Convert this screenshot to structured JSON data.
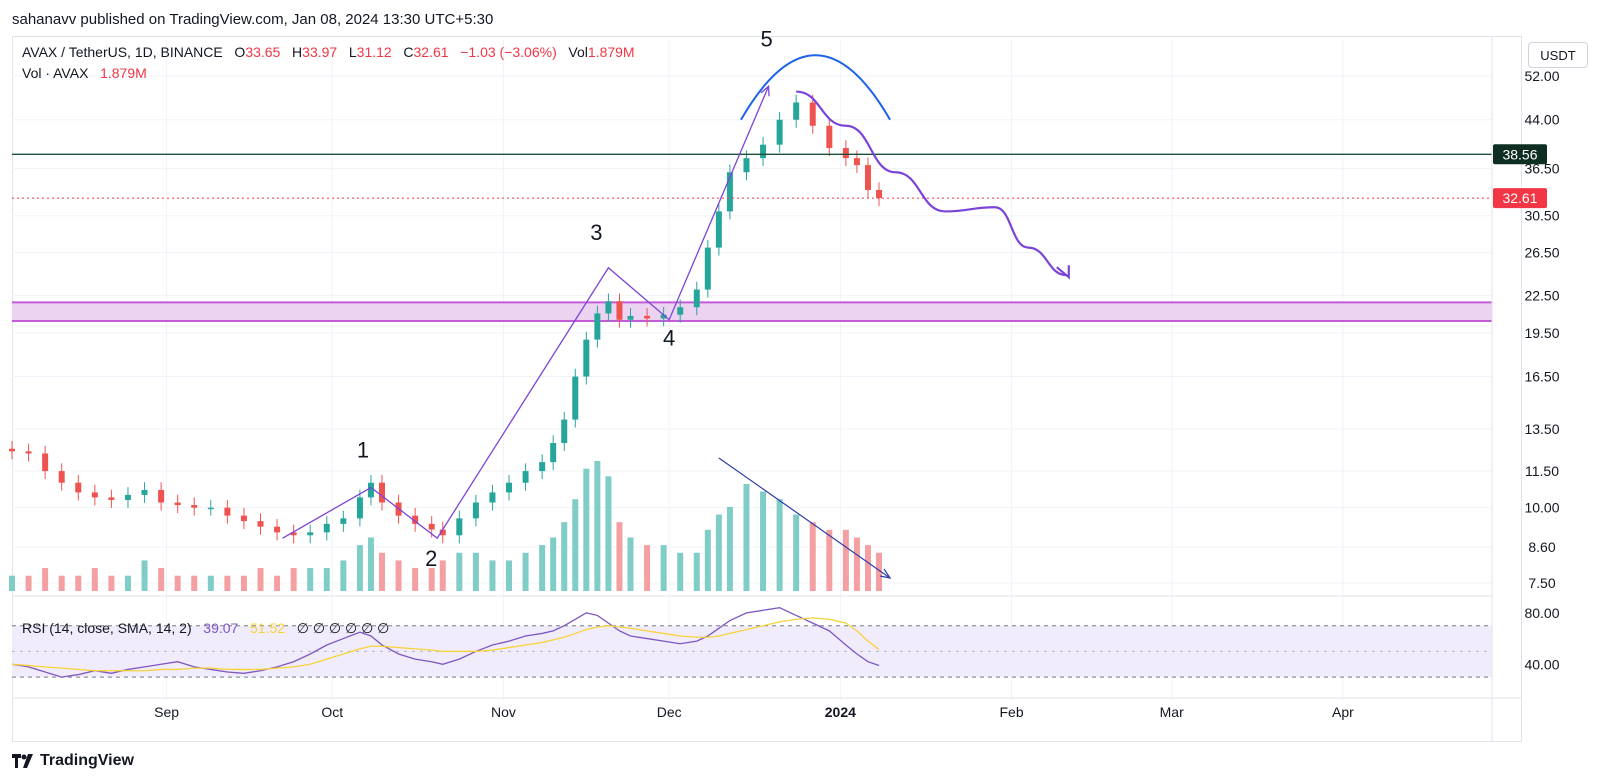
{
  "header": {
    "published": "sahanavv published on TradingView.com, Jan 08, 2024 13:30 UTC+5:30"
  },
  "legend": {
    "symbol": "AVAX / TetherUS, 1D, BINANCE",
    "o_label": "O",
    "o_value": "33.65",
    "h_label": "H",
    "h_value": "33.97",
    "l_label": "L",
    "l_value": "31.12",
    "c_label": "C",
    "c_value": "32.61",
    "change": "−1.03 (−3.06%)",
    "vol_label": "Vol",
    "vol_value": "1.879M",
    "vol_series_label": "Vol · AVAX",
    "vol_series_value": "1.879M"
  },
  "rsi_legend": {
    "label": "RSI (14, close, SMA, 14, 2)",
    "rsi_value": "39.07",
    "sma_value": "51.52",
    "empty_values": "∅ ∅ ∅ ∅ ∅ ∅"
  },
  "currency": "USDT",
  "footer": {
    "brand": "TradingView"
  },
  "colors": {
    "up": "#26a69a",
    "down": "#ef5350",
    "vol_up": "#7fcdc6",
    "vol_down": "#f4a0a2",
    "resistance": "#1a4d3a",
    "zone": "#c45bd6",
    "zone_fill": "#ecd3f2",
    "wave": "#7b44d8",
    "arc": "#1b63e8",
    "trend": "#2b3ea8",
    "rsi": "#7e57c2",
    "rsi_sma": "#f7d33a"
  },
  "chart_data": [
    {
      "type": "candlestick",
      "title": "AVAX / TetherUS, 1D, BINANCE",
      "y_scale": "log",
      "y_ticks": [
        7.5,
        8.6,
        10.0,
        11.5,
        13.5,
        16.5,
        19.5,
        22.5,
        26.5,
        30.5,
        36.5,
        44.0,
        52.0
      ],
      "y_tick_labels": [
        "7.50",
        "8.60",
        "10.00",
        "11.50",
        "13.50",
        "16.50",
        "19.50",
        "22.50",
        "26.50",
        "30.50",
        "36.50",
        "44.00",
        "52.00"
      ],
      "x_ticks": [
        {
          "date": "2023-09-01",
          "label": "Sep",
          "bold": false
        },
        {
          "date": "2023-10-01",
          "label": "Oct",
          "bold": false
        },
        {
          "date": "2023-11-01",
          "label": "Nov",
          "bold": false
        },
        {
          "date": "2023-12-01",
          "label": "Dec",
          "bold": false
        },
        {
          "date": "2024-01-01",
          "label": "2024",
          "bold": true
        },
        {
          "date": "2024-02-01",
          "label": "Feb",
          "bold": false
        },
        {
          "date": "2024-03-01",
          "label": "Mar",
          "bold": false
        },
        {
          "date": "2024-04-01",
          "label": "Apr",
          "bold": false
        }
      ],
      "x_range": [
        "2023-08-04",
        "2024-04-28"
      ],
      "close_series": [
        [
          "2023-08-04",
          12.4
        ],
        [
          "2023-08-07",
          12.3
        ],
        [
          "2023-08-10",
          11.5
        ],
        [
          "2023-08-13",
          11.0
        ],
        [
          "2023-08-16",
          10.6
        ],
        [
          "2023-08-19",
          10.4
        ],
        [
          "2023-08-22",
          10.3
        ],
        [
          "2023-08-25",
          10.5
        ],
        [
          "2023-08-28",
          10.7
        ],
        [
          "2023-08-31",
          10.2
        ],
        [
          "2023-09-03",
          10.1
        ],
        [
          "2023-09-06",
          10.0
        ],
        [
          "2023-09-09",
          10.0
        ],
        [
          "2023-09-12",
          9.7
        ],
        [
          "2023-09-15",
          9.5
        ],
        [
          "2023-09-18",
          9.3
        ],
        [
          "2023-09-21",
          9.1
        ],
        [
          "2023-09-24",
          9.0
        ],
        [
          "2023-09-27",
          9.1
        ],
        [
          "2023-09-30",
          9.4
        ],
        [
          "2023-10-03",
          9.6
        ],
        [
          "2023-10-06",
          10.4
        ],
        [
          "2023-10-08",
          11.0
        ],
        [
          "2023-10-10",
          10.2
        ],
        [
          "2023-10-13",
          9.7
        ],
        [
          "2023-10-16",
          9.4
        ],
        [
          "2023-10-19",
          9.2
        ],
        [
          "2023-10-21",
          9.0
        ],
        [
          "2023-10-24",
          9.6
        ],
        [
          "2023-10-27",
          10.2
        ],
        [
          "2023-10-30",
          10.6
        ],
        [
          "2023-11-02",
          11.0
        ],
        [
          "2023-11-05",
          11.5
        ],
        [
          "2023-11-08",
          11.9
        ],
        [
          "2023-11-10",
          12.8
        ],
        [
          "2023-11-12",
          14.0
        ],
        [
          "2023-11-14",
          16.5
        ],
        [
          "2023-11-16",
          19.0
        ],
        [
          "2023-11-18",
          21.0
        ],
        [
          "2023-11-20",
          22.0
        ],
        [
          "2023-11-22",
          20.5
        ],
        [
          "2023-11-24",
          20.8
        ],
        [
          "2023-11-27",
          20.6
        ],
        [
          "2023-11-30",
          20.9
        ],
        [
          "2023-12-03",
          21.5
        ],
        [
          "2023-12-06",
          23.0
        ],
        [
          "2023-12-08",
          27.0
        ],
        [
          "2023-12-10",
          31.0
        ],
        [
          "2023-12-12",
          36.0
        ],
        [
          "2023-12-15",
          38.0
        ],
        [
          "2023-12-18",
          40.0
        ],
        [
          "2023-12-21",
          44.0
        ],
        [
          "2023-12-24",
          47.0
        ],
        [
          "2023-12-27",
          43.0
        ],
        [
          "2023-12-30",
          39.5
        ],
        [
          "2024-01-02",
          38.0
        ],
        [
          "2024-01-04",
          37.0
        ],
        [
          "2024-01-06",
          33.65
        ],
        [
          "2024-01-08",
          32.61
        ]
      ],
      "volume_series_relative": [
        2,
        2,
        3,
        2,
        2,
        3,
        2,
        2,
        4,
        3,
        2,
        2,
        2,
        2,
        2,
        3,
        2,
        3,
        3,
        3,
        4,
        6,
        7,
        5,
        4,
        3,
        3,
        4,
        5,
        5,
        4,
        4,
        5,
        6,
        7,
        9,
        12,
        16,
        17,
        15,
        9,
        7,
        6,
        6,
        5,
        5,
        8,
        10,
        11,
        14,
        13,
        12,
        10,
        9,
        8,
        8,
        7,
        6,
        5
      ],
      "horizontal_levels": [
        {
          "price": 38.56,
          "label": "38.56",
          "style": "solid"
        },
        {
          "price": 32.61,
          "label": "32.61",
          "style": "dotted"
        }
      ],
      "support_zone": {
        "from": 20.4,
        "to": 21.9
      },
      "wave_labels": [
        "1",
        "2",
        "3",
        "4",
        "5"
      ],
      "wave_path": [
        [
          "2023-09-22",
          8.9
        ],
        [
          "2023-10-08",
          10.8
        ],
        [
          "2023-10-20",
          8.9
        ],
        [
          "2023-11-20",
          25.0
        ],
        [
          "2023-12-01",
          20.5
        ],
        [
          "2023-12-19",
          50.0
        ]
      ],
      "projection_path": [
        [
          "2023-12-24",
          49.0
        ],
        [
          "2024-01-02",
          43.0
        ],
        [
          "2024-01-11",
          36.0
        ],
        [
          "2024-01-20",
          31.0
        ],
        [
          "2024-01-29",
          31.5
        ],
        [
          "2024-02-04",
          27.0
        ],
        [
          "2024-02-11",
          24.3
        ]
      ]
    },
    {
      "type": "line",
      "title": "RSI (14, close, SMA, 14, 2)",
      "y_ticks": [
        40,
        80
      ],
      "y_tick_labels": [
        "40.00",
        "80.00"
      ],
      "band": [
        30,
        70
      ],
      "series": [
        {
          "name": "RSI",
          "values": [
            40,
            38,
            34,
            30,
            32,
            35,
            33,
            36,
            38,
            40,
            42,
            38,
            36,
            34,
            33,
            35,
            38,
            42,
            48,
            55,
            60,
            65,
            62,
            55,
            48,
            44,
            42,
            40,
            44,
            50,
            55,
            58,
            62,
            64,
            66,
            70,
            75,
            80,
            78,
            72,
            66,
            62,
            60,
            58,
            56,
            58,
            62,
            68,
            74,
            80,
            82,
            84,
            78,
            72,
            66,
            55,
            48,
            42,
            39.07
          ]
        },
        {
          "name": "SMA",
          "values": [
            40,
            39,
            38,
            37,
            36,
            35,
            35,
            35,
            35,
            36,
            36,
            37,
            37,
            36,
            36,
            36,
            37,
            38,
            40,
            44,
            48,
            52,
            54,
            54,
            53,
            52,
            51,
            50,
            50,
            50,
            51,
            53,
            55,
            57,
            59,
            61,
            64,
            67,
            69,
            70,
            69,
            68,
            66,
            64,
            62,
            61,
            61,
            62,
            64,
            67,
            70,
            73,
            75,
            76,
            75,
            72,
            66,
            58,
            51.52
          ]
        }
      ],
      "last_rsi": 39.07,
      "last_sma": 51.52
    }
  ]
}
